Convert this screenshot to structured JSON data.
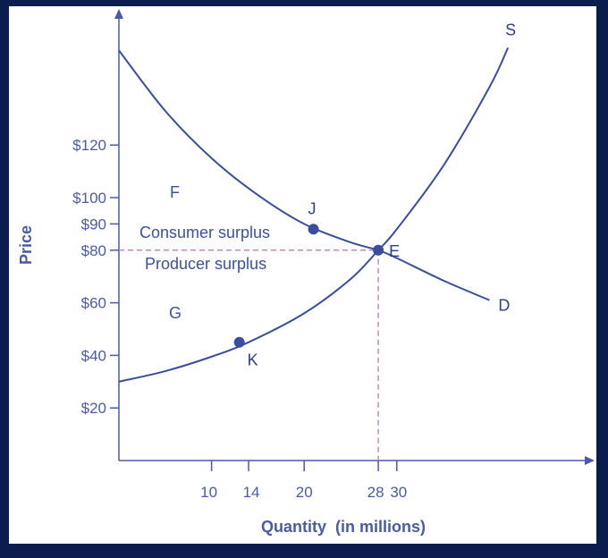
{
  "chart_data": {
    "type": "line",
    "title": "",
    "xlabel": "Quantity  (in millions)",
    "ylabel": "Price",
    "x_ticks": [
      10,
      14,
      20,
      28,
      30
    ],
    "y_ticks": [
      {
        "value": 20,
        "label": "$20"
      },
      {
        "value": 40,
        "label": "$40"
      },
      {
        "value": 60,
        "label": "$60"
      },
      {
        "value": 80,
        "label": "$80"
      },
      {
        "value": 90,
        "label": "$90"
      },
      {
        "value": 100,
        "label": "$100"
      },
      {
        "value": 120,
        "label": "$120"
      }
    ],
    "series": [
      {
        "name": "D",
        "color": "#3a4d9f",
        "points": [
          [
            0,
            156
          ],
          [
            5,
            133
          ],
          [
            10,
            115
          ],
          [
            15,
            101
          ],
          [
            20,
            90
          ],
          [
            25,
            83
          ],
          [
            28,
            80
          ],
          [
            30,
            77
          ],
          [
            35,
            68.5
          ],
          [
            40,
            61
          ]
        ]
      },
      {
        "name": "S",
        "color": "#3a4d9f",
        "points": [
          [
            0,
            30
          ],
          [
            5,
            34
          ],
          [
            10,
            39.5
          ],
          [
            14,
            45
          ],
          [
            20,
            56
          ],
          [
            25,
            69
          ],
          [
            28,
            80
          ],
          [
            30,
            88
          ],
          [
            35,
            112
          ],
          [
            40,
            142
          ],
          [
            42,
            157
          ]
        ]
      }
    ],
    "points": [
      {
        "label": "J",
        "x": 21,
        "y": 88
      },
      {
        "label": "E",
        "x": 28,
        "y": 80
      },
      {
        "label": "K",
        "x": 13,
        "y": 45
      }
    ],
    "area_labels": {
      "F": "F",
      "G": "G",
      "consumer": "Consumer surplus",
      "producer": "Producer surplus"
    },
    "equilibrium": {
      "x": 28,
      "y": 80
    },
    "xlim": [
      0,
      50
    ],
    "ylim": [
      0,
      175
    ],
    "grid": false
  }
}
